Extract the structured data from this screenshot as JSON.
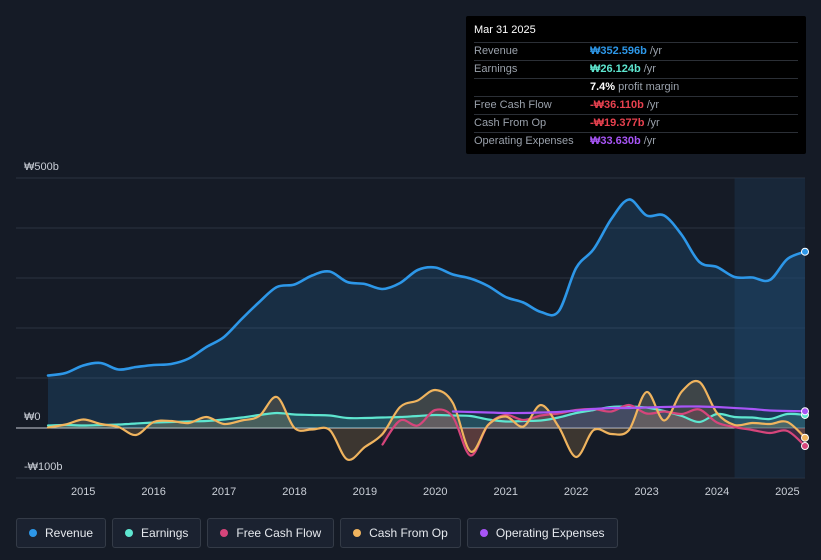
{
  "tooltip": {
    "date": "Mar 31 2025",
    "rows": [
      {
        "label": "Revenue",
        "value": "₩352.596b",
        "unit": "/yr",
        "color": "#2d97e8"
      },
      {
        "label": "Earnings",
        "value": "₩26.124b",
        "unit": "/yr",
        "color": "#5ee6d0"
      },
      {
        "label": "",
        "value": "7.4%",
        "unit": "profit margin",
        "color": "#ffffff"
      },
      {
        "label": "Free Cash Flow",
        "value": "-₩36.110b",
        "unit": "/yr",
        "color": "#e8414f"
      },
      {
        "label": "Cash From Op",
        "value": "-₩19.377b",
        "unit": "/yr",
        "color": "#e8414f"
      },
      {
        "label": "Operating Expenses",
        "value": "₩33.630b",
        "unit": "/yr",
        "color": "#a855f7"
      }
    ]
  },
  "legend": [
    {
      "label": "Revenue",
      "color": "#2d97e8"
    },
    {
      "label": "Earnings",
      "color": "#5ee6d0"
    },
    {
      "label": "Free Cash Flow",
      "color": "#d6457b"
    },
    {
      "label": "Cash From Op",
      "color": "#f0b45e"
    },
    {
      "label": "Operating Expenses",
      "color": "#a855f7"
    }
  ],
  "chart_data": {
    "type": "line",
    "title": "",
    "ylim": [
      -100,
      500
    ],
    "xlim": [
      2014.5,
      2025.25
    ],
    "y_tick_labels": [
      {
        "value": 500,
        "label": "₩500b"
      },
      {
        "value": 0,
        "label": "₩0"
      },
      {
        "value": -100,
        "label": "-₩100b"
      }
    ],
    "x_tick_labels": [
      "2015",
      "2016",
      "2017",
      "2018",
      "2019",
      "2020",
      "2021",
      "2022",
      "2023",
      "2024",
      "2025"
    ],
    "forecast_start": 2024.25,
    "series": [
      {
        "name": "Revenue",
        "color": "#2d97e8",
        "fill": true,
        "points": [
          [
            2014.5,
            105
          ],
          [
            2014.75,
            110
          ],
          [
            2015,
            125
          ],
          [
            2015.25,
            130
          ],
          [
            2015.5,
            117
          ],
          [
            2015.75,
            122
          ],
          [
            2016,
            126
          ],
          [
            2016.25,
            128
          ],
          [
            2016.5,
            139
          ],
          [
            2016.75,
            162
          ],
          [
            2017,
            182
          ],
          [
            2017.25,
            218
          ],
          [
            2017.5,
            252
          ],
          [
            2017.75,
            282
          ],
          [
            2018,
            287
          ],
          [
            2018.25,
            305
          ],
          [
            2018.5,
            313
          ],
          [
            2018.75,
            292
          ],
          [
            2019,
            288
          ],
          [
            2019.25,
            278
          ],
          [
            2019.5,
            290
          ],
          [
            2019.75,
            316
          ],
          [
            2020,
            321
          ],
          [
            2020.25,
            307
          ],
          [
            2020.5,
            299
          ],
          [
            2020.75,
            284
          ],
          [
            2021,
            262
          ],
          [
            2021.25,
            251
          ],
          [
            2021.5,
            232
          ],
          [
            2021.75,
            233
          ],
          [
            2022,
            320
          ],
          [
            2022.25,
            358
          ],
          [
            2022.5,
            418
          ],
          [
            2022.75,
            457
          ],
          [
            2023,
            425
          ],
          [
            2023.25,
            425
          ],
          [
            2023.5,
            386
          ],
          [
            2023.75,
            332
          ],
          [
            2024,
            322
          ],
          [
            2024.25,
            302
          ],
          [
            2024.5,
            301
          ],
          [
            2024.75,
            296
          ],
          [
            2025,
            338
          ],
          [
            2025.25,
            352.6
          ]
        ]
      },
      {
        "name": "Earnings",
        "color": "#5ee6d0",
        "fill": true,
        "points": [
          [
            2014.5,
            5
          ],
          [
            2014.75,
            6
          ],
          [
            2015,
            5
          ],
          [
            2015.25,
            6
          ],
          [
            2015.5,
            7
          ],
          [
            2015.75,
            9
          ],
          [
            2016,
            11
          ],
          [
            2016.25,
            12
          ],
          [
            2016.5,
            13
          ],
          [
            2016.75,
            14
          ],
          [
            2017,
            17
          ],
          [
            2017.25,
            21
          ],
          [
            2017.5,
            26
          ],
          [
            2017.75,
            30
          ],
          [
            2018,
            27
          ],
          [
            2018.25,
            26
          ],
          [
            2018.5,
            25
          ],
          [
            2018.75,
            20
          ],
          [
            2019,
            20
          ],
          [
            2019.25,
            21
          ],
          [
            2019.5,
            22
          ],
          [
            2019.75,
            24
          ],
          [
            2020,
            26
          ],
          [
            2020.25,
            25
          ],
          [
            2020.5,
            24
          ],
          [
            2020.75,
            17
          ],
          [
            2021,
            13
          ],
          [
            2021.25,
            14
          ],
          [
            2021.5,
            15
          ],
          [
            2021.75,
            21
          ],
          [
            2022,
            30
          ],
          [
            2022.25,
            36
          ],
          [
            2022.5,
            42
          ],
          [
            2022.75,
            43
          ],
          [
            2023,
            41
          ],
          [
            2023.25,
            34
          ],
          [
            2023.5,
            24
          ],
          [
            2023.75,
            12
          ],
          [
            2024,
            28
          ],
          [
            2024.25,
            22
          ],
          [
            2024.5,
            21
          ],
          [
            2024.75,
            18
          ],
          [
            2025,
            28
          ],
          [
            2025.25,
            26.1
          ]
        ]
      },
      {
        "name": "Free Cash Flow",
        "color": "#d6457b",
        "fill": true,
        "points": [
          [
            2019.25,
            -33
          ],
          [
            2019.5,
            15
          ],
          [
            2019.75,
            5
          ],
          [
            2020,
            36
          ],
          [
            2020.25,
            22
          ],
          [
            2020.5,
            -55
          ],
          [
            2020.75,
            6
          ],
          [
            2021,
            26
          ],
          [
            2021.25,
            16
          ],
          [
            2021.5,
            25
          ],
          [
            2021.75,
            29
          ],
          [
            2022,
            36
          ],
          [
            2022.25,
            38
          ],
          [
            2022.5,
            33
          ],
          [
            2022.75,
            46
          ],
          [
            2023,
            29
          ],
          [
            2023.25,
            33
          ],
          [
            2023.5,
            28
          ],
          [
            2023.75,
            37
          ],
          [
            2024,
            11
          ],
          [
            2024.25,
            2
          ],
          [
            2024.5,
            -4
          ],
          [
            2024.75,
            -10
          ],
          [
            2025,
            -6
          ],
          [
            2025.25,
            -36.1
          ]
        ]
      },
      {
        "name": "Cash From Op",
        "color": "#f0b45e",
        "fill": true,
        "points": [
          [
            2014.5,
            1
          ],
          [
            2014.75,
            7
          ],
          [
            2015,
            17
          ],
          [
            2015.25,
            8
          ],
          [
            2015.5,
            2
          ],
          [
            2015.75,
            -14
          ],
          [
            2016,
            12
          ],
          [
            2016.25,
            14
          ],
          [
            2016.5,
            10
          ],
          [
            2016.75,
            22
          ],
          [
            2017,
            8
          ],
          [
            2017.25,
            15
          ],
          [
            2017.5,
            24
          ],
          [
            2017.75,
            62
          ],
          [
            2018,
            0
          ],
          [
            2018.25,
            -3
          ],
          [
            2018.5,
            -4
          ],
          [
            2018.75,
            -63
          ],
          [
            2019,
            -38
          ],
          [
            2019.25,
            -12
          ],
          [
            2019.5,
            42
          ],
          [
            2019.75,
            55
          ],
          [
            2020,
            76
          ],
          [
            2020.25,
            50
          ],
          [
            2020.5,
            -47
          ],
          [
            2020.75,
            6
          ],
          [
            2021,
            23
          ],
          [
            2021.25,
            3
          ],
          [
            2021.5,
            46
          ],
          [
            2021.75,
            3
          ],
          [
            2022,
            -58
          ],
          [
            2022.25,
            -4
          ],
          [
            2022.5,
            -12
          ],
          [
            2022.75,
            -4
          ],
          [
            2023,
            72
          ],
          [
            2023.25,
            15
          ],
          [
            2023.5,
            73
          ],
          [
            2023.75,
            92
          ],
          [
            2024,
            30
          ],
          [
            2024.25,
            6
          ],
          [
            2024.5,
            10
          ],
          [
            2024.75,
            8
          ],
          [
            2025,
            12
          ],
          [
            2025.25,
            -19.4
          ]
        ]
      },
      {
        "name": "Operating Expenses",
        "color": "#a855f7",
        "fill": false,
        "points": [
          [
            2020.25,
            33
          ],
          [
            2020.5,
            32
          ],
          [
            2020.75,
            31
          ],
          [
            2021,
            30
          ],
          [
            2021.25,
            30
          ],
          [
            2021.5,
            31
          ],
          [
            2021.75,
            32
          ],
          [
            2022,
            35
          ],
          [
            2022.25,
            38
          ],
          [
            2022.5,
            40
          ],
          [
            2022.75,
            40
          ],
          [
            2023,
            41
          ],
          [
            2023.25,
            42
          ],
          [
            2023.5,
            43
          ],
          [
            2023.75,
            43
          ],
          [
            2024,
            42
          ],
          [
            2024.25,
            40
          ],
          [
            2024.5,
            38
          ],
          [
            2024.75,
            35
          ],
          [
            2025,
            34
          ],
          [
            2025.25,
            33.6
          ]
        ]
      }
    ]
  }
}
